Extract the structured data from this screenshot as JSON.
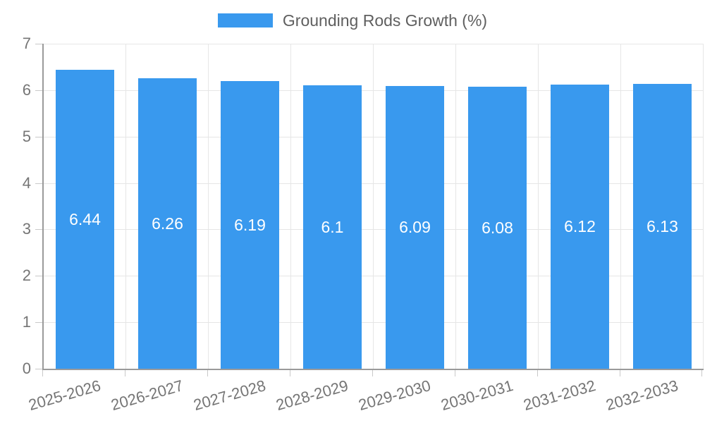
{
  "legend": {
    "label": "Grounding Rods Growth (%)"
  },
  "chart_data": {
    "type": "bar",
    "title": "Grounding Rods Growth (%)",
    "categories": [
      "2025-2026",
      "2026-2027",
      "2027-2028",
      "2028-2029",
      "2029-2030",
      "2030-2031",
      "2031-2032",
      "2032-2033"
    ],
    "values": [
      6.44,
      6.26,
      6.19,
      6.1,
      6.09,
      6.08,
      6.12,
      6.13
    ],
    "value_labels": [
      "6.44",
      "6.26",
      "6.19",
      "6.1",
      "6.09",
      "6.08",
      "6.12",
      "6.13"
    ],
    "series_name": "Grounding Rods Growth (%)",
    "xlabel": "",
    "ylabel": "",
    "ylim": [
      0,
      7
    ],
    "y_ticks": [
      0,
      1,
      2,
      3,
      4,
      5,
      6,
      7
    ],
    "grid": true,
    "legend_position": "top",
    "data_labels": "inside-center"
  },
  "colors": {
    "bar": "#3999ee",
    "bar_label": "#ffffff",
    "grid": "#e6e6e6",
    "axis_line": "#9a9a9a",
    "tick": "#c9c9c9",
    "axis_text": "#757575",
    "legend_text": "#5f5f5f",
    "background": "#ffffff"
  }
}
